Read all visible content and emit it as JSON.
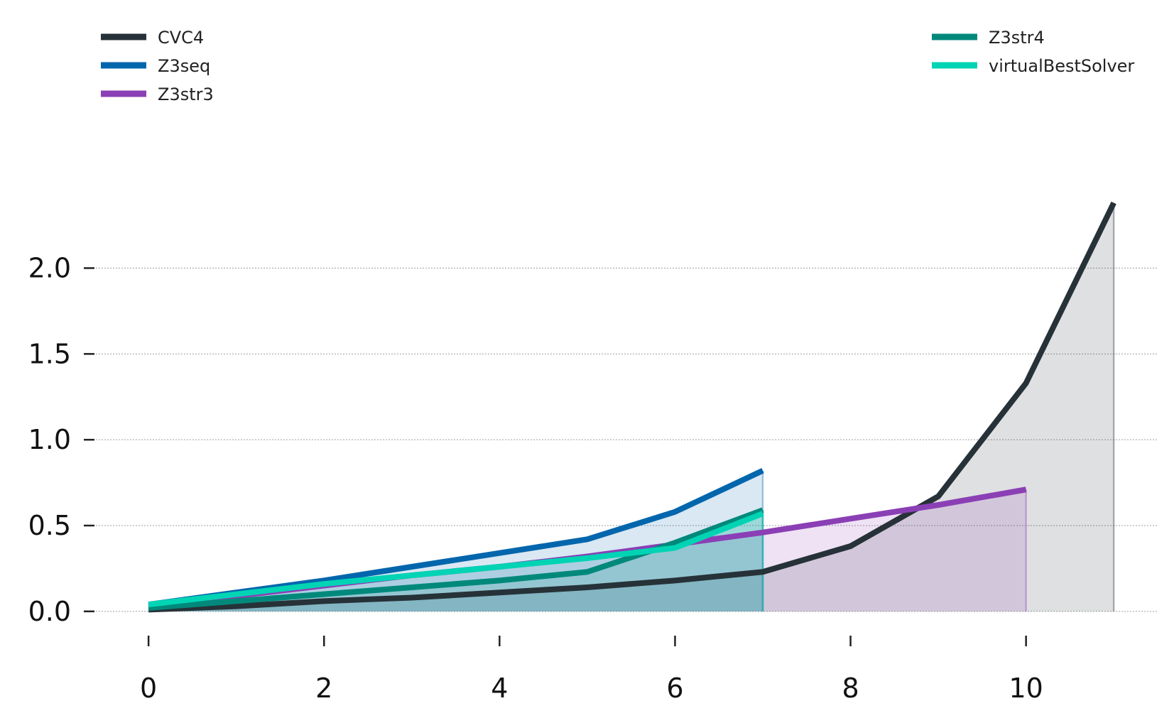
{
  "chart_data": {
    "type": "area",
    "xlabel": "",
    "ylabel": "",
    "xlim": [
      -0.6,
      11.5
    ],
    "ylim": [
      -0.1,
      2.9
    ],
    "x_ticks": [
      "0",
      "2",
      "4",
      "6",
      "8",
      "10"
    ],
    "y_ticks": [
      "0.0",
      "0.5",
      "1.0",
      "1.5",
      "2.0"
    ],
    "grid": "horizontal dotted",
    "legend_placement": "top",
    "series": [
      {
        "name": "CVC4",
        "color": "#263238",
        "x": [
          0,
          1,
          2,
          3,
          4,
          5,
          6,
          7,
          8,
          9,
          10,
          11
        ],
        "y": [
          0.01,
          0.03,
          0.06,
          0.08,
          0.11,
          0.14,
          0.18,
          0.23,
          0.38,
          0.67,
          1.33,
          2.38
        ]
      },
      {
        "name": "Z3seq",
        "color": "#0266ad",
        "x": [
          0,
          1,
          2,
          3,
          4,
          5,
          6,
          7
        ],
        "y": [
          0.04,
          0.11,
          0.18,
          0.26,
          0.34,
          0.42,
          0.58,
          0.82
        ]
      },
      {
        "name": "Z3str3",
        "color": "#8b3fb5",
        "x": [
          0,
          1,
          2,
          3,
          4,
          5,
          6,
          7,
          8,
          9,
          10
        ],
        "y": [
          0.03,
          0.09,
          0.15,
          0.21,
          0.26,
          0.32,
          0.39,
          0.46,
          0.54,
          0.62,
          0.71
        ]
      },
      {
        "name": "Z3str4",
        "color": "#00897b",
        "x": [
          0,
          1,
          2,
          3,
          4,
          5,
          6,
          7
        ],
        "y": [
          0.02,
          0.06,
          0.1,
          0.14,
          0.18,
          0.23,
          0.4,
          0.59
        ]
      },
      {
        "name": "virtualBestSolver",
        "color": "#00d4b4",
        "x": [
          0,
          1,
          2,
          3,
          4,
          5,
          6,
          7
        ],
        "y": [
          0.04,
          0.1,
          0.16,
          0.21,
          0.26,
          0.31,
          0.37,
          0.57
        ]
      }
    ]
  }
}
